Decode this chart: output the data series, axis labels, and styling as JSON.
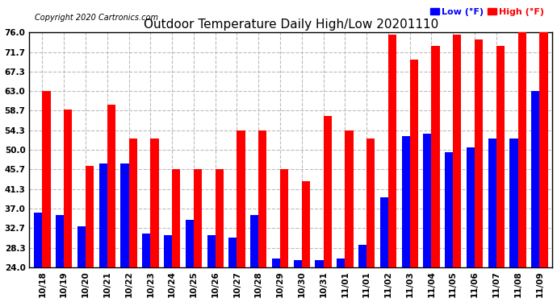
{
  "title": "Outdoor Temperature Daily High/Low 20201110",
  "copyright": "Copyright 2020 Cartronics.com",
  "legend_low": "Low",
  "legend_high": "High",
  "legend_unit": "(°F)",
  "dates": [
    "10/18",
    "10/19",
    "10/20",
    "10/21",
    "10/22",
    "10/23",
    "10/24",
    "10/25",
    "10/26",
    "10/27",
    "10/28",
    "10/29",
    "10/30",
    "10/31",
    "11/01",
    "11/01",
    "11/02",
    "11/03",
    "11/04",
    "11/05",
    "11/06",
    "11/07",
    "11/08",
    "11/09"
  ],
  "highs": [
    63.0,
    59.0,
    46.5,
    60.0,
    52.5,
    52.5,
    45.7,
    45.7,
    45.7,
    54.3,
    54.3,
    45.7,
    43.0,
    57.5,
    54.3,
    52.5,
    75.5,
    70.0,
    73.0,
    75.5,
    74.5,
    73.0,
    76.0,
    76.0
  ],
  "lows": [
    36.0,
    35.5,
    33.0,
    47.0,
    47.0,
    31.5,
    31.0,
    34.5,
    31.0,
    30.5,
    35.5,
    26.0,
    25.5,
    25.5,
    26.0,
    29.0,
    39.5,
    53.0,
    53.5,
    49.5,
    50.5,
    52.5,
    52.5,
    63.0
  ],
  "ylim": [
    24.0,
    76.0
  ],
  "yticks": [
    24.0,
    28.3,
    32.7,
    37.0,
    41.3,
    45.7,
    50.0,
    54.3,
    58.7,
    63.0,
    67.3,
    71.7,
    76.0
  ],
  "high_color": "#FF0000",
  "low_color": "#0000FF",
  "bg_color": "#FFFFFF",
  "grid_color": "#BBBBBB",
  "bar_width": 0.38,
  "title_fontsize": 11,
  "tick_fontsize": 7.5,
  "label_fontsize": 8,
  "ymin": 24.0
}
